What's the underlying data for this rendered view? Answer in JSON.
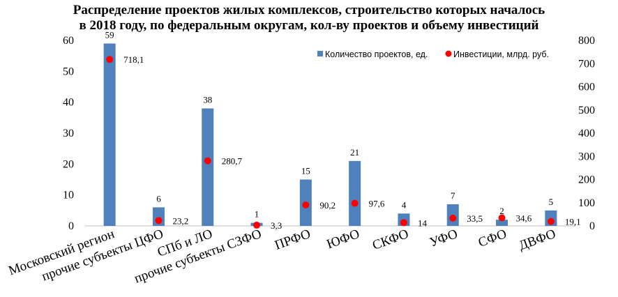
{
  "chart_data": {
    "type": "bar",
    "title_line1": "Распределение проектов жилых комплексов, строительство которых началось",
    "title_line2": "в 2018 году, по федеральным округам, кол-ву проектов и объему инвестиций",
    "categories": [
      "Московский регион",
      "прочие субъекты ЦФО",
      "СПб и ЛО",
      "прочие субъекты СЗФО",
      "ПРФО",
      "ЮФО",
      "СКФО",
      "УФО",
      "СФО",
      "ДВФО"
    ],
    "series": [
      {
        "name": "Количество проектов, ед.",
        "type": "bar",
        "axis": "left",
        "color": "#4f81bd",
        "values": [
          59,
          6,
          38,
          1,
          15,
          21,
          4,
          7,
          2,
          5
        ],
        "labels": [
          "59",
          "6",
          "38",
          "1",
          "15",
          "21",
          "4",
          "7",
          "2",
          "5"
        ]
      },
      {
        "name": "Инвестиции, млрд. руб.",
        "type": "scatter",
        "axis": "right",
        "color": "#ff0000",
        "values": [
          718.1,
          23.2,
          280.7,
          3.3,
          90.2,
          97.6,
          14,
          33.5,
          34.6,
          19.1
        ],
        "labels": [
          "718,1",
          "23,2",
          "280,7",
          "3,3",
          "90,2",
          "97,6",
          "14",
          "33,5",
          "34,6",
          "19,1"
        ]
      }
    ],
    "y_left": {
      "min": 0,
      "max": 60,
      "ticks": [
        "0",
        "10",
        "20",
        "30",
        "40",
        "50",
        "60"
      ]
    },
    "y_right": {
      "min": 0,
      "max": 800,
      "ticks": [
        "0",
        "100",
        "200",
        "300",
        "400",
        "500",
        "600",
        "700",
        "800"
      ]
    },
    "legend_position": "top-right",
    "grid": false
  }
}
